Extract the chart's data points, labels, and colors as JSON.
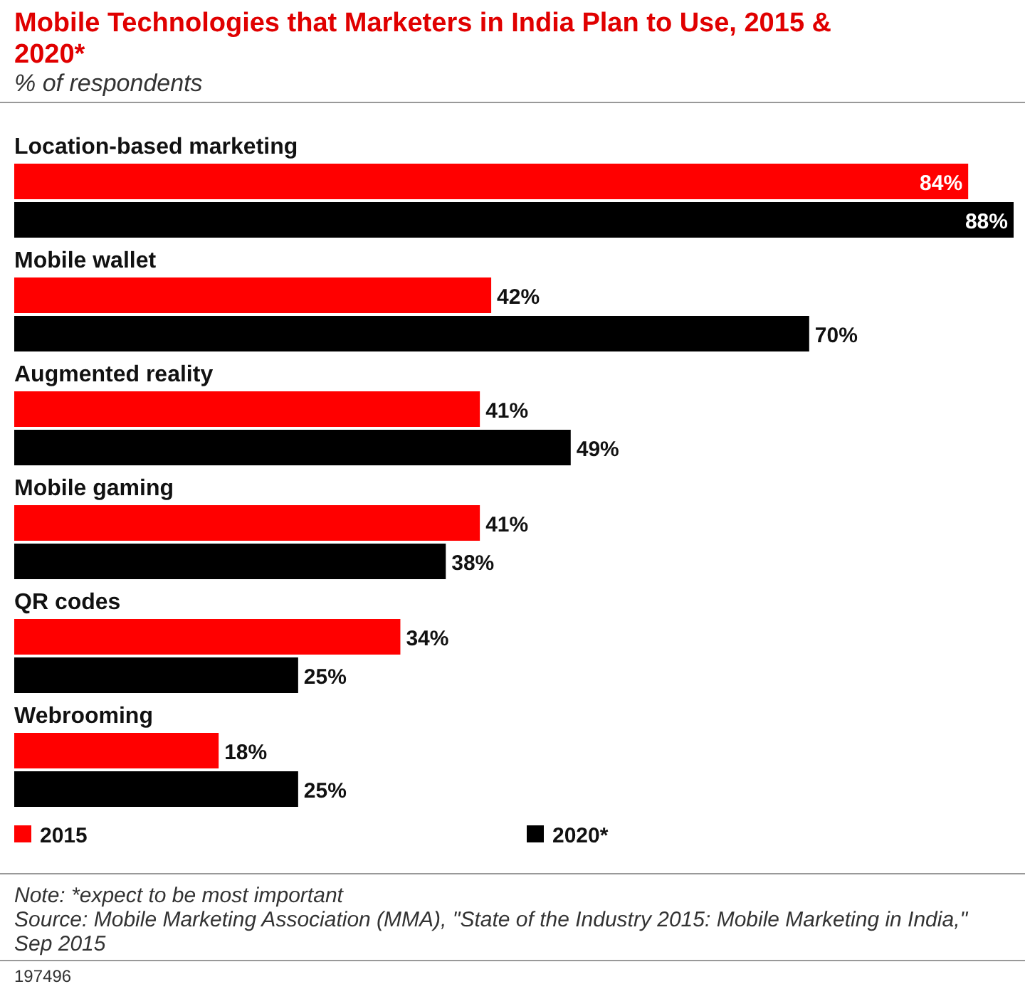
{
  "chart_data": {
    "type": "bar",
    "orientation": "horizontal",
    "title": "Mobile Technologies that Marketers in India Plan to Use, 2015 & 2020*",
    "subtitle": "% of respondents",
    "categories": [
      "Location-based marketing",
      "Mobile wallet",
      "Augmented reality",
      "Mobile gaming",
      "QR codes",
      "Webrooming"
    ],
    "series": [
      {
        "name": "2015",
        "color": "#ff0000",
        "values": [
          84,
          42,
          41,
          41,
          34,
          18
        ],
        "value_labels": [
          "84%",
          "42%",
          "41%",
          "41%",
          "34%",
          "18%"
        ]
      },
      {
        "name": "2020*",
        "color": "#000000",
        "values": [
          88,
          70,
          49,
          38,
          25,
          25
        ],
        "value_labels": [
          "88%",
          "70%",
          "49%",
          "38%",
          "25%",
          "25%"
        ]
      }
    ],
    "legend": "bottom",
    "annotations": [
      "Note: *expect to be most important",
      "Source: Mobile Marketing Association (MMA), \"State of the Industry 2015: Mobile Marketing in India,\" Sep 2015",
      "197496"
    ]
  }
}
